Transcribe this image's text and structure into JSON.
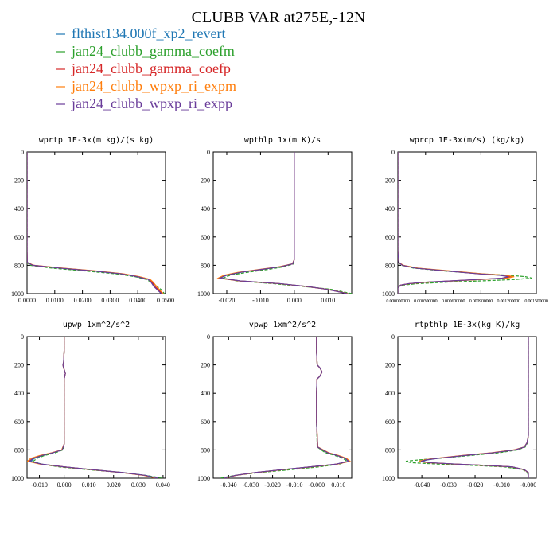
{
  "title": "CLUBB VAR at275E,-12N",
  "legend": [
    {
      "label": "flthist134.000f_xp2_revert",
      "color": "#1f77b4",
      "dash": "solid"
    },
    {
      "label": "jan24_clubb_gamma_coefm",
      "color": "#2ca02c",
      "dash": "dashed"
    },
    {
      "label": "jan24_clubb_gamma_coefp",
      "color": "#d62728",
      "dash": "solid"
    },
    {
      "label": "jan24_clubb_wpxp_ri_expm",
      "color": "#ff7f0e",
      "dash": "solid"
    },
    {
      "label": "jan24_clubb_wpxp_ri_expp",
      "color": "#6a3d9a",
      "dash": "solid"
    }
  ],
  "chart_data": [
    {
      "type": "line",
      "title": "wprtp  1E-3x(m kg)/(s kg)",
      "xlim": [
        0.0,
        0.05
      ],
      "ylim": [
        1000,
        0
      ],
      "xticks": [
        "0.0000",
        "0.0100",
        "0.0200",
        "0.0300",
        "0.0400",
        "0.0500"
      ],
      "xtick_values": [
        0.0,
        0.01,
        0.02,
        0.03,
        0.04,
        0.05
      ],
      "yticks": [
        "0",
        "200",
        "400",
        "600",
        "800",
        "1000"
      ],
      "y": [
        0,
        200,
        400,
        600,
        700,
        780,
        800,
        820,
        840,
        860,
        880,
        900,
        920,
        950,
        980,
        1000
      ],
      "series": [
        {
          "values": [
            0.0,
            0.0,
            0.0,
            0.0,
            0.0,
            0.0001,
            0.002,
            0.012,
            0.024,
            0.034,
            0.04,
            0.044,
            0.045,
            0.046,
            0.048,
            0.049
          ]
        },
        {
          "values": [
            0.0,
            0.0,
            0.0,
            0.0,
            0.0,
            0.0,
            0.0012,
            0.009,
            0.021,
            0.032,
            0.039,
            0.043,
            0.045,
            0.047,
            0.049,
            0.0495
          ]
        },
        {
          "values": [
            0.0,
            0.0,
            0.0,
            0.0,
            0.0,
            0.0001,
            0.0022,
            0.0125,
            0.0245,
            0.0345,
            0.0403,
            0.0443,
            0.0452,
            0.0462,
            0.0478,
            0.0488
          ]
        },
        {
          "values": [
            0.0,
            0.0,
            0.0,
            0.0,
            0.0,
            0.0001,
            0.0024,
            0.013,
            0.025,
            0.0348,
            0.0405,
            0.0445,
            0.0456,
            0.0468,
            0.0482,
            0.0492
          ]
        },
        {
          "values": [
            0.0,
            0.0,
            0.0,
            0.0,
            0.0,
            0.0001,
            0.0021,
            0.012,
            0.024,
            0.034,
            0.0398,
            0.0438,
            0.0448,
            0.0458,
            0.0474,
            0.0485
          ]
        }
      ]
    },
    {
      "type": "line",
      "title": "wpthlp  1x(m K)/s",
      "xlim": [
        -0.024,
        0.017
      ],
      "ylim": [
        1000,
        0
      ],
      "xticks": [
        "-0.020",
        "-0.010",
        "0.000",
        "0.010"
      ],
      "xtick_values": [
        -0.02,
        -0.01,
        0.0,
        0.01
      ],
      "yticks": [
        "0",
        "200",
        "400",
        "600",
        "800",
        "1000"
      ],
      "y": [
        0,
        100,
        200,
        300,
        400,
        500,
        600,
        700,
        760,
        790,
        810,
        830,
        850,
        870,
        890,
        910,
        930,
        950,
        970,
        1000
      ],
      "series": [
        {
          "values": [
            0.0,
            0.0,
            0.0,
            0.0,
            0.0,
            0.0,
            0.0,
            0.0,
            0.0,
            -0.0005,
            -0.004,
            -0.01,
            -0.016,
            -0.02,
            -0.022,
            -0.016,
            -0.004,
            0.004,
            0.01,
            0.016
          ]
        },
        {
          "values": [
            0.0,
            0.0,
            0.0,
            0.0,
            0.0,
            0.0,
            0.0,
            0.0,
            0.0,
            -0.0002,
            -0.003,
            -0.008,
            -0.014,
            -0.019,
            -0.021,
            -0.017,
            -0.006,
            0.003,
            0.011,
            0.017
          ]
        },
        {
          "values": [
            0.0,
            0.0,
            0.0,
            0.0,
            0.0,
            0.0,
            0.0,
            0.0,
            0.0,
            -0.0005,
            -0.0042,
            -0.0102,
            -0.0163,
            -0.0203,
            -0.0222,
            -0.0162,
            -0.0042,
            0.0038,
            0.0098,
            0.0158
          ]
        },
        {
          "values": [
            0.0,
            0.0,
            0.0,
            0.0,
            0.0,
            0.0,
            0.0,
            0.0,
            0.0,
            -0.0006,
            -0.0045,
            -0.0106,
            -0.0168,
            -0.0208,
            -0.0225,
            -0.0163,
            -0.0041,
            0.0039,
            0.0099,
            0.0159
          ]
        },
        {
          "values": [
            0.0,
            0.0,
            0.0,
            0.0,
            0.0,
            0.0,
            0.0,
            0.0,
            0.0,
            -0.0005,
            -0.0041,
            -0.0101,
            -0.0161,
            -0.0201,
            -0.022,
            -0.016,
            -0.004,
            0.004,
            0.0098,
            0.0157
          ]
        }
      ]
    },
    {
      "type": "line",
      "title": "wprcp  1E-3x(m/s) (kg/kg)",
      "xlim": [
        0.0,
        0.0015
      ],
      "ylim": [
        1000,
        0
      ],
      "xticks": [
        "0.000000000",
        "0.000300000",
        "0.000600000",
        "0.000900000",
        "0.001200000",
        "0.001500000"
      ],
      "xtick_values": [
        0.0,
        0.0003,
        0.0006,
        0.0009,
        0.0012,
        0.0015
      ],
      "yticks": [
        "0",
        "200",
        "400",
        "600",
        "800",
        "1000"
      ],
      "y": [
        0,
        200,
        400,
        600,
        700,
        780,
        800,
        820,
        840,
        860,
        870,
        880,
        890,
        900,
        910,
        920,
        930,
        940,
        950,
        960,
        1000
      ],
      "series": [
        {
          "values": [
            0,
            0,
            0,
            0,
            0,
            1e-05,
            5e-05,
            0.0002,
            0.00055,
            0.0009,
            0.00115,
            0.00125,
            0.00118,
            0.0009,
            0.0006,
            0.0003,
            0.00012,
            3e-05,
            1e-05,
            0,
            0
          ]
        },
        {
          "values": [
            0,
            0,
            0,
            0,
            0,
            1e-05,
            4e-05,
            0.00017,
            0.0005,
            0.0009,
            0.0012,
            0.00138,
            0.00145,
            0.00128,
            0.0009,
            0.0005,
            0.0002,
            6e-05,
            1e-05,
            0,
            0
          ]
        },
        {
          "values": [
            0,
            0,
            0,
            0,
            0,
            1e-05,
            5e-05,
            0.0002,
            0.00054,
            0.00088,
            0.00112,
            0.00122,
            0.00115,
            0.00088,
            0.00058,
            0.00029,
            0.00011,
            3e-05,
            1e-05,
            0,
            0
          ]
        },
        {
          "values": [
            0,
            0,
            0,
            0,
            0,
            1e-05,
            6e-05,
            0.00022,
            0.00057,
            0.00092,
            0.00116,
            0.00126,
            0.00119,
            0.00091,
            0.0006,
            0.0003,
            0.00012,
            3e-05,
            1e-05,
            0,
            0
          ]
        },
        {
          "values": [
            0,
            0,
            0,
            0,
            0,
            1e-05,
            5e-05,
            0.00019,
            0.00053,
            0.00087,
            0.0011,
            0.0012,
            0.00113,
            0.00087,
            0.00057,
            0.00028,
            0.00011,
            3e-05,
            1e-05,
            0,
            0
          ]
        }
      ]
    },
    {
      "type": "line",
      "title": "upwp   1xm^2/s^2",
      "xlim": [
        -0.015,
        0.041
      ],
      "ylim": [
        1000,
        0
      ],
      "xticks": [
        "-0.010",
        "0.000",
        "0.010",
        "0.020",
        "0.030",
        "0.040"
      ],
      "xtick_values": [
        -0.01,
        0.0,
        0.01,
        0.02,
        0.03,
        0.04
      ],
      "yticks": [
        "0",
        "200",
        "400",
        "600",
        "800",
        "1000"
      ],
      "y": [
        0,
        100,
        180,
        200,
        220,
        260,
        300,
        400,
        600,
        760,
        800,
        820,
        840,
        860,
        880,
        900,
        920,
        940,
        960,
        980,
        1000
      ],
      "series": [
        {
          "values": [
            0,
            0,
            -0.0002,
            -0.0005,
            -0.0002,
            0.0005,
            0,
            0,
            0,
            0,
            -0.0008,
            -0.0045,
            -0.009,
            -0.012,
            -0.0135,
            -0.009,
            0.0,
            0.012,
            0.024,
            0.033,
            0.038
          ]
        },
        {
          "values": [
            0,
            0,
            -0.0002,
            -0.0005,
            -0.0002,
            0.0005,
            0,
            0,
            0,
            0,
            -0.0005,
            -0.0035,
            -0.008,
            -0.011,
            -0.0125,
            -0.0095,
            -0.002,
            0.01,
            0.023,
            0.033,
            0.04
          ]
        },
        {
          "values": [
            0,
            0,
            -0.0002,
            -0.0005,
            -0.0002,
            0.0005,
            0,
            0,
            0,
            0,
            -0.0009,
            -0.0048,
            -0.0095,
            -0.0128,
            -0.0142,
            -0.0095,
            0.0,
            0.0115,
            0.0235,
            0.0325,
            0.0375
          ]
        },
        {
          "values": [
            0,
            0,
            -0.0002,
            -0.0005,
            -0.0002,
            0.0005,
            0,
            0,
            0,
            0,
            -0.001,
            -0.005,
            -0.01,
            -0.0135,
            -0.0148,
            -0.0098,
            -0.0002,
            0.0112,
            0.0232,
            0.0322,
            0.0372
          ]
        },
        {
          "values": [
            0,
            0,
            -0.0002,
            -0.0005,
            -0.0002,
            0.0005,
            0,
            0,
            0,
            0,
            -0.0008,
            -0.0046,
            -0.0092,
            -0.0125,
            -0.014,
            -0.0093,
            0.0,
            0.0115,
            0.0235,
            0.0328,
            0.0378
          ]
        }
      ]
    },
    {
      "type": "line",
      "title": "vpwp   1xm^2/s^2",
      "xlim": [
        -0.047,
        0.016
      ],
      "ylim": [
        1000,
        0
      ],
      "xticks": [
        "-0.040",
        "-0.030",
        "-0.020",
        "-0.010",
        "-0.000",
        "0.010"
      ],
      "xtick_values": [
        -0.04,
        -0.03,
        -0.02,
        -0.01,
        0.0,
        0.01
      ],
      "yticks": [
        "0",
        "200",
        "400",
        "600",
        "800",
        "1000"
      ],
      "y": [
        0,
        100,
        200,
        220,
        250,
        280,
        300,
        400,
        600,
        780,
        820,
        840,
        860,
        880,
        900,
        920,
        940,
        960,
        980,
        1000
      ],
      "series": [
        {
          "values": [
            0,
            0,
            0.0003,
            0.0015,
            0.0025,
            0.0015,
            0.0002,
            0,
            0,
            0.0005,
            0.005,
            0.0095,
            0.013,
            0.0145,
            0.009,
            -0.003,
            -0.016,
            -0.028,
            -0.037,
            -0.042
          ]
        },
        {
          "values": [
            0,
            0,
            0.0003,
            0.0015,
            0.0025,
            0.0015,
            0.0002,
            0,
            0,
            0.0003,
            0.004,
            0.0085,
            0.012,
            0.014,
            0.0105,
            0.001,
            -0.012,
            -0.026,
            -0.037,
            -0.044
          ]
        },
        {
          "values": [
            0,
            0,
            0.0003,
            0.0015,
            0.0025,
            0.0015,
            0.0002,
            0,
            0,
            0.0005,
            0.0052,
            0.0098,
            0.0133,
            0.0148,
            0.0092,
            -0.0028,
            -0.0158,
            -0.0278,
            -0.0368,
            -0.0418
          ]
        },
        {
          "values": [
            0,
            0,
            0.0003,
            0.0015,
            0.0025,
            0.0015,
            0.0002,
            0,
            0,
            0.0006,
            0.0055,
            0.0102,
            0.0137,
            0.0152,
            0.0095,
            -0.0026,
            -0.0156,
            -0.0276,
            -0.0366,
            -0.0416
          ]
        },
        {
          "values": [
            0,
            0,
            0.0003,
            0.0015,
            0.0025,
            0.0015,
            0.0002,
            0,
            0,
            0.0005,
            0.0051,
            0.0096,
            0.0131,
            0.0146,
            0.0091,
            -0.0029,
            -0.0159,
            -0.0279,
            -0.0369,
            -0.0419
          ]
        }
      ]
    },
    {
      "type": "line",
      "title": "rtpthlp  1E-3x(kg K)/kg",
      "xlim": [
        -0.049,
        0.003
      ],
      "ylim": [
        1000,
        0
      ],
      "xticks": [
        "-0.040",
        "-0.030",
        "-0.020",
        "-0.010",
        "-0.000"
      ],
      "xtick_values": [
        -0.04,
        -0.03,
        -0.02,
        -0.01,
        0.0
      ],
      "yticks": [
        "0",
        "200",
        "400",
        "600",
        "800",
        "1000"
      ],
      "y": [
        0,
        200,
        400,
        600,
        700,
        750,
        780,
        800,
        820,
        840,
        860,
        870,
        880,
        890,
        900,
        910,
        920,
        940,
        960,
        1000
      ],
      "series": [
        {
          "values": [
            0,
            0,
            0,
            0,
            0,
            -0.0005,
            -0.0015,
            -0.005,
            -0.013,
            -0.024,
            -0.034,
            -0.038,
            -0.04,
            -0.037,
            -0.027,
            -0.015,
            -0.006,
            -0.0015,
            0,
            0
          ]
        },
        {
          "values": [
            0,
            0,
            0,
            0,
            0,
            -0.0003,
            -0.0012,
            -0.004,
            -0.011,
            -0.022,
            -0.034,
            -0.041,
            -0.046,
            -0.044,
            -0.034,
            -0.02,
            -0.009,
            -0.002,
            -0.0003,
            0
          ]
        },
        {
          "values": [
            0,
            0,
            0,
            0,
            0,
            -0.0005,
            -0.0015,
            -0.0052,
            -0.0134,
            -0.0246,
            -0.0346,
            -0.0386,
            -0.0406,
            -0.0376,
            -0.0274,
            -0.0152,
            -0.0061,
            -0.0015,
            0,
            0
          ]
        },
        {
          "values": [
            0,
            0,
            0,
            0,
            0,
            -0.0005,
            -0.0016,
            -0.0054,
            -0.0138,
            -0.025,
            -0.035,
            -0.039,
            -0.041,
            -0.038,
            -0.0278,
            -0.0155,
            -0.0062,
            -0.0016,
            0,
            0
          ]
        },
        {
          "values": [
            0,
            0,
            0,
            0,
            0,
            -0.0005,
            -0.0015,
            -0.0051,
            -0.0132,
            -0.0243,
            -0.0343,
            -0.0383,
            -0.0403,
            -0.0373,
            -0.0272,
            -0.0151,
            -0.0061,
            -0.0015,
            0,
            0
          ]
        }
      ]
    }
  ]
}
